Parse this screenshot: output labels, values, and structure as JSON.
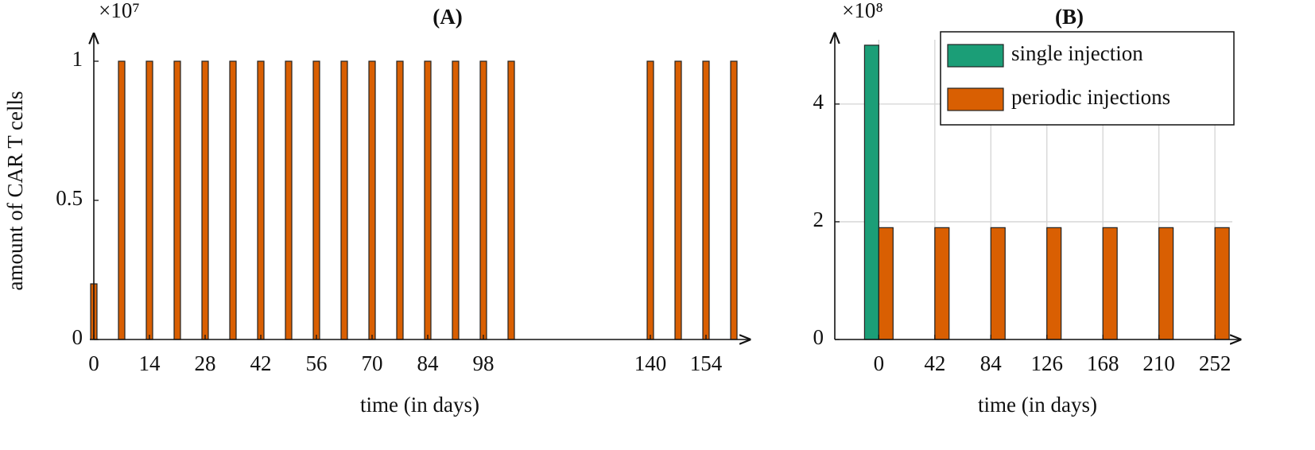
{
  "chart_data": [
    {
      "type": "bar",
      "title": "(A)",
      "multiplier": "×10⁷",
      "ylabel": "amount of CAR T cells",
      "xlabel": "time (in days)",
      "x": [
        0,
        7,
        14,
        21,
        28,
        35,
        42,
        49,
        56,
        63,
        70,
        77,
        84,
        91,
        98,
        105,
        140,
        147,
        154,
        161
      ],
      "values": [
        0.2,
        1,
        1,
        1,
        1,
        1,
        1,
        1,
        1,
        1,
        1,
        1,
        1,
        1,
        1,
        1,
        1,
        1,
        1,
        1
      ],
      "color": "#d95f02",
      "xlim": [
        -1,
        165
      ],
      "xticks": [
        0,
        14,
        28,
        42,
        56,
        70,
        84,
        98,
        140,
        154
      ],
      "ylim": [
        0,
        1.09
      ],
      "yticks": [
        0,
        0.5,
        1
      ],
      "grid": false
    },
    {
      "type": "bar",
      "title": "(B)",
      "multiplier": "×10⁸",
      "xlabel": "time (in days)",
      "x": [
        0,
        42,
        84,
        126,
        168,
        210,
        252
      ],
      "series": [
        {
          "name": "single injection",
          "color": "#1b9e77",
          "values": [
            5,
            0,
            0,
            0,
            0,
            0,
            0
          ]
        },
        {
          "name": "periodic injections",
          "color": "#d95f02",
          "values": [
            1.9,
            1.9,
            1.9,
            1.9,
            1.9,
            1.9,
            1.9
          ]
        }
      ],
      "xlim": [
        -33,
        271
      ],
      "xticks": [
        0,
        42,
        84,
        126,
        168,
        210,
        252
      ],
      "ylim": [
        0,
        5.16
      ],
      "yticks": [
        0,
        2,
        4
      ],
      "grid": true,
      "legend": "upper right"
    }
  ]
}
